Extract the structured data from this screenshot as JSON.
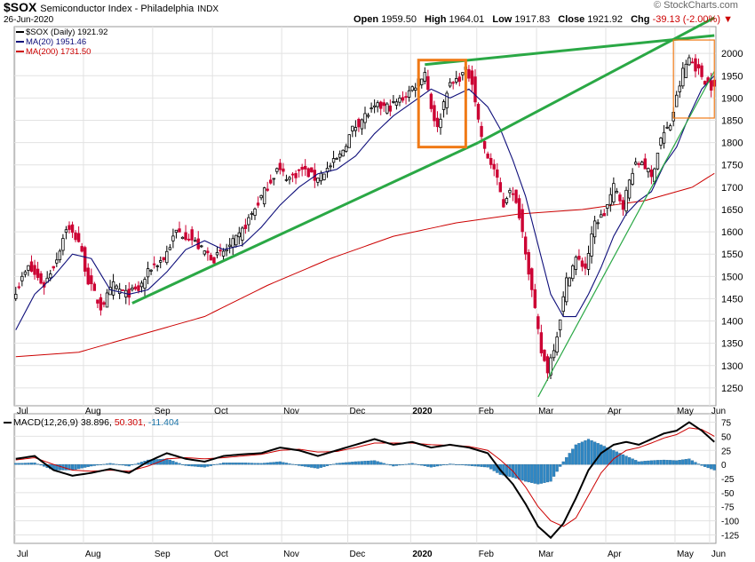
{
  "header": {
    "symbol": "$SOX",
    "name": "Semiconductor Index - Philadelphia",
    "exchange": "INDX",
    "date": "26-Jun-2020",
    "open_label": "Open",
    "open": "1959.50",
    "high_label": "High",
    "high": "1964.01",
    "low_label": "Low",
    "low": "1917.83",
    "close_label": "Close",
    "close": "1921.92",
    "chg_label": "Chg",
    "chg": "-39.13 (-2.00%)",
    "brand": "© StockCharts.com"
  },
  "legend": {
    "price": "$SOX (Daily) 1921.92",
    "ma20": "MA(20) 1951.46",
    "ma200": "MA(200) 1731.50"
  },
  "macd_label": {
    "name": "MACD(12,26,9)",
    "macd": "38.896,",
    "signal": "50.301,",
    "hist": "-11.404"
  },
  "colors": {
    "up": "#000000",
    "down": "#cc0033",
    "ma20": "#0e0e7a",
    "ma200": "#cc0000",
    "trend": "#2aa845",
    "box": "#f07a16",
    "hist": "#2f87c4",
    "macd_signal": "#cc0000"
  },
  "chart_data": [
    {
      "type": "candlestick",
      "title": "$SOX Semiconductor Index - Philadelphia (Daily)",
      "x_labels": [
        "Jul",
        "Aug",
        "Sep",
        "Oct",
        "Nov",
        "Dec",
        "2020",
        "Feb",
        "Mar",
        "Apr",
        "May",
        "Jun"
      ],
      "y_ticks": [
        1250,
        1300,
        1350,
        1400,
        1450,
        1500,
        1550,
        1600,
        1650,
        1700,
        1750,
        1800,
        1850,
        1900,
        1950,
        2000
      ],
      "ylim": [
        1210,
        2060
      ],
      "close_anchors": [
        [
          0,
          1470
        ],
        [
          4,
          1520
        ],
        [
          9,
          1480
        ],
        [
          13,
          1540
        ],
        [
          16,
          1610
        ],
        [
          20,
          1580
        ],
        [
          23,
          1490
        ],
        [
          27,
          1430
        ],
        [
          31,
          1480
        ],
        [
          35,
          1460
        ],
        [
          39,
          1470
        ],
        [
          43,
          1520
        ],
        [
          47,
          1540
        ],
        [
          51,
          1600
        ],
        [
          55,
          1590
        ],
        [
          59,
          1560
        ],
        [
          63,
          1540
        ],
        [
          67,
          1560
        ],
        [
          71,
          1590
        ],
        [
          75,
          1640
        ],
        [
          79,
          1690
        ],
        [
          83,
          1740
        ],
        [
          87,
          1720
        ],
        [
          91,
          1740
        ],
        [
          95,
          1720
        ],
        [
          99,
          1740
        ],
        [
          103,
          1770
        ],
        [
          107,
          1830
        ],
        [
          111,
          1860
        ],
        [
          115,
          1880
        ],
        [
          119,
          1880
        ],
        [
          123,
          1900
        ],
        [
          127,
          1930
        ],
        [
          130,
          1960
        ],
        [
          132,
          1880
        ],
        [
          134,
          1830
        ],
        [
          137,
          1920
        ],
        [
          140,
          1940
        ],
        [
          143,
          1960
        ],
        [
          145,
          1940
        ],
        [
          147,
          1850
        ],
        [
          149,
          1780
        ],
        [
          152,
          1740
        ],
        [
          155,
          1660
        ],
        [
          157,
          1700
        ],
        [
          160,
          1640
        ],
        [
          162,
          1560
        ],
        [
          165,
          1420
        ],
        [
          167,
          1330
        ],
        [
          169,
          1290
        ],
        [
          172,
          1370
        ],
        [
          175,
          1490
        ],
        [
          178,
          1540
        ],
        [
          181,
          1520
        ],
        [
          184,
          1620
        ],
        [
          187,
          1640
        ],
        [
          190,
          1700
        ],
        [
          193,
          1660
        ],
        [
          196,
          1740
        ],
        [
          199,
          1760
        ],
        [
          202,
          1720
        ],
        [
          205,
          1810
        ],
        [
          208,
          1840
        ],
        [
          210,
          1900
        ],
        [
          212,
          1960
        ],
        [
          214,
          1990
        ],
        [
          216,
          1970
        ],
        [
          219,
          1940
        ],
        [
          222,
          1920
        ]
      ],
      "ma20_anchors": [
        [
          0,
          1380
        ],
        [
          6,
          1460
        ],
        [
          12,
          1500
        ],
        [
          18,
          1550
        ],
        [
          24,
          1540
        ],
        [
          30,
          1470
        ],
        [
          36,
          1460
        ],
        [
          42,
          1470
        ],
        [
          48,
          1510
        ],
        [
          54,
          1560
        ],
        [
          60,
          1580
        ],
        [
          66,
          1560
        ],
        [
          72,
          1570
        ],
        [
          78,
          1610
        ],
        [
          84,
          1660
        ],
        [
          90,
          1700
        ],
        [
          96,
          1730
        ],
        [
          102,
          1740
        ],
        [
          108,
          1770
        ],
        [
          114,
          1820
        ],
        [
          120,
          1860
        ],
        [
          126,
          1890
        ],
        [
          132,
          1920
        ],
        [
          138,
          1900
        ],
        [
          144,
          1920
        ],
        [
          150,
          1880
        ],
        [
          154,
          1830
        ],
        [
          158,
          1760
        ],
        [
          162,
          1680
        ],
        [
          166,
          1570
        ],
        [
          170,
          1460
        ],
        [
          174,
          1410
        ],
        [
          178,
          1410
        ],
        [
          182,
          1460
        ],
        [
          186,
          1520
        ],
        [
          190,
          1590
        ],
        [
          194,
          1640
        ],
        [
          198,
          1670
        ],
        [
          202,
          1690
        ],
        [
          206,
          1750
        ],
        [
          210,
          1790
        ],
        [
          214,
          1860
        ],
        [
          218,
          1920
        ],
        [
          222,
          1950
        ]
      ],
      "ma200_anchors": [
        [
          0,
          1320
        ],
        [
          20,
          1330
        ],
        [
          40,
          1370
        ],
        [
          60,
          1410
        ],
        [
          80,
          1480
        ],
        [
          100,
          1540
        ],
        [
          120,
          1590
        ],
        [
          140,
          1620
        ],
        [
          160,
          1640
        ],
        [
          180,
          1650
        ],
        [
          200,
          1670
        ],
        [
          215,
          1700
        ],
        [
          222,
          1731
        ]
      ],
      "trendlines": [
        {
          "from": [
            37,
            1440
          ],
          "to": [
            147,
            1800
          ]
        },
        {
          "from": [
            147,
            1800
          ],
          "to": [
            222,
            2080
          ]
        },
        {
          "from": [
            130,
            1975
          ],
          "to": [
            222,
            2040
          ]
        },
        {
          "from": [
            166,
            1230
          ],
          "to": [
            222,
            1960
          ]
        }
      ],
      "highlight_boxes": [
        {
          "x0": 128,
          "x1": 143,
          "y0": 1790,
          "y1": 1985
        },
        {
          "x0": 209,
          "x1": 222,
          "y0": 1855,
          "y1": 2030
        }
      ]
    },
    {
      "type": "macd",
      "title": "MACD(12,26,9)",
      "y_ticks": [
        75,
        50,
        25,
        0,
        -25,
        -50,
        -75,
        -100,
        -125
      ],
      "ylim": [
        -140,
        90
      ],
      "macd_anchors": [
        [
          0,
          10
        ],
        [
          6,
          15
        ],
        [
          12,
          -10
        ],
        [
          18,
          -20
        ],
        [
          24,
          -15
        ],
        [
          30,
          -8
        ],
        [
          36,
          -15
        ],
        [
          42,
          5
        ],
        [
          48,
          20
        ],
        [
          54,
          10
        ],
        [
          60,
          5
        ],
        [
          66,
          15
        ],
        [
          72,
          18
        ],
        [
          78,
          20
        ],
        [
          84,
          30
        ],
        [
          90,
          25
        ],
        [
          96,
          15
        ],
        [
          102,
          25
        ],
        [
          108,
          35
        ],
        [
          114,
          45
        ],
        [
          120,
          35
        ],
        [
          126,
          40
        ],
        [
          132,
          30
        ],
        [
          138,
          35
        ],
        [
          144,
          30
        ],
        [
          150,
          20
        ],
        [
          154,
          -10
        ],
        [
          158,
          -35
        ],
        [
          162,
          -70
        ],
        [
          166,
          -110
        ],
        [
          170,
          -130
        ],
        [
          174,
          -105
        ],
        [
          178,
          -60
        ],
        [
          182,
          -10
        ],
        [
          186,
          20
        ],
        [
          190,
          35
        ],
        [
          194,
          40
        ],
        [
          198,
          35
        ],
        [
          202,
          45
        ],
        [
          206,
          55
        ],
        [
          210,
          60
        ],
        [
          214,
          75
        ],
        [
          218,
          60
        ],
        [
          222,
          40
        ]
      ],
      "signal_anchors": [
        [
          0,
          8
        ],
        [
          6,
          12
        ],
        [
          12,
          0
        ],
        [
          18,
          -10
        ],
        [
          24,
          -12
        ],
        [
          30,
          -10
        ],
        [
          36,
          -12
        ],
        [
          42,
          -3
        ],
        [
          48,
          10
        ],
        [
          54,
          12
        ],
        [
          60,
          10
        ],
        [
          66,
          12
        ],
        [
          72,
          15
        ],
        [
          78,
          18
        ],
        [
          84,
          25
        ],
        [
          90,
          27
        ],
        [
          96,
          22
        ],
        [
          102,
          23
        ],
        [
          108,
          30
        ],
        [
          114,
          38
        ],
        [
          120,
          38
        ],
        [
          126,
          38
        ],
        [
          132,
          35
        ],
        [
          138,
          34
        ],
        [
          144,
          32
        ],
        [
          150,
          25
        ],
        [
          154,
          8
        ],
        [
          158,
          -12
        ],
        [
          162,
          -40
        ],
        [
          166,
          -75
        ],
        [
          170,
          -100
        ],
        [
          174,
          -110
        ],
        [
          178,
          -95
        ],
        [
          182,
          -55
        ],
        [
          186,
          -15
        ],
        [
          190,
          10
        ],
        [
          194,
          25
        ],
        [
          198,
          30
        ],
        [
          202,
          38
        ],
        [
          206,
          47
        ],
        [
          210,
          53
        ],
        [
          214,
          65
        ],
        [
          218,
          62
        ],
        [
          222,
          50
        ]
      ]
    }
  ]
}
